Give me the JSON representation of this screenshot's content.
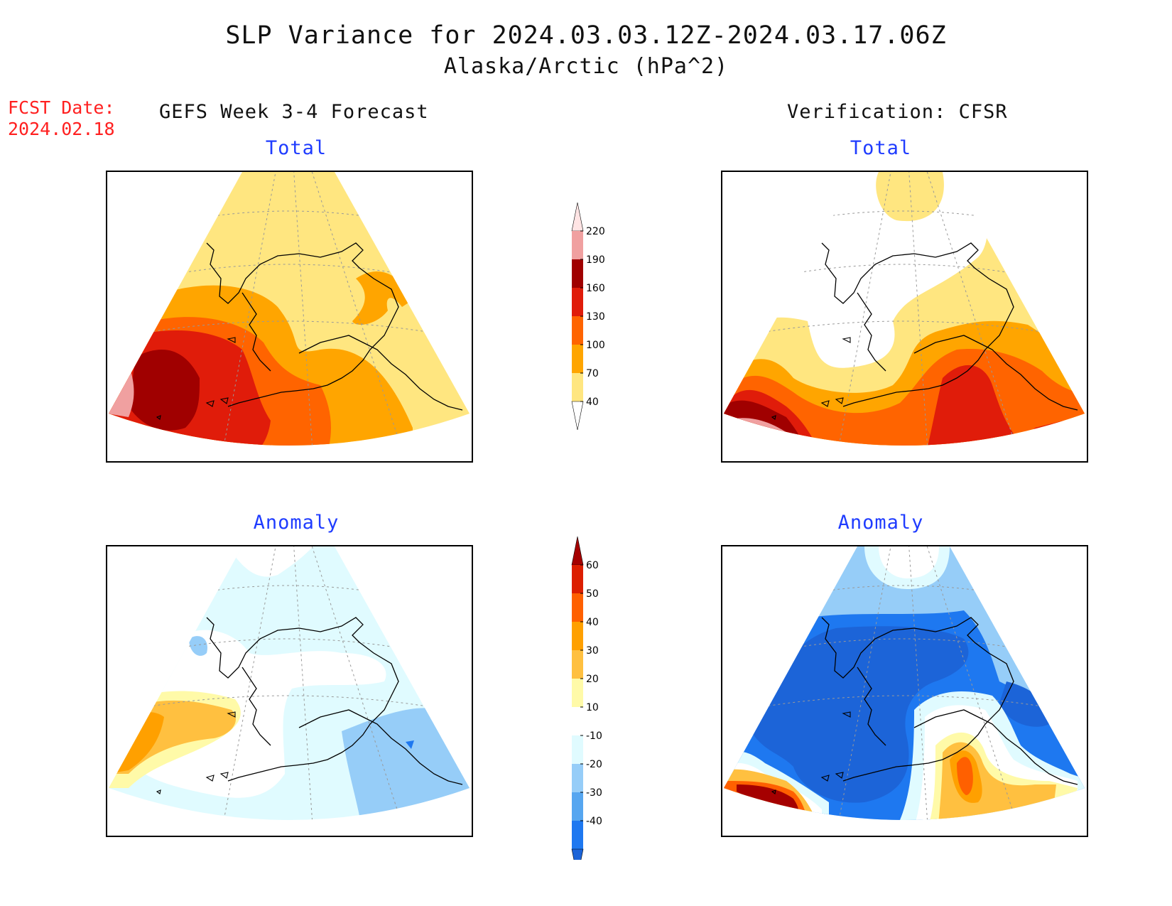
{
  "header": {
    "title": "SLP Variance for 2024.03.03.12Z-2024.03.17.06Z",
    "subtitle": "Alaska/Arctic (hPa^2)",
    "fcst_label": "FCST Date:",
    "fcst_date": "2024.02.18"
  },
  "columns": {
    "left": "GEFS Week 3-4 Forecast",
    "right": "Verification: CFSR"
  },
  "panels": {
    "forecast_total": {
      "title": "Total",
      "region": "Alaska/Arctic"
    },
    "verification_total": {
      "title": "Total",
      "region": "Alaska/Arctic"
    },
    "forecast_anomaly": {
      "title": "Anomaly",
      "region": "Alaska/Arctic"
    },
    "verification_anomaly": {
      "title": "Anomaly",
      "region": "Alaska/Arctic"
    }
  },
  "colorbars": {
    "total": {
      "labels": [
        "40",
        "70",
        "100",
        "130",
        "160",
        "190",
        "220"
      ],
      "colors": [
        "#ffffff",
        "#ffe680",
        "#ffa500",
        "#ff6400",
        "#e01c0a",
        "#a00000",
        "#f0a0a0",
        "#ffe4e4"
      ]
    },
    "anomaly": {
      "labels": [
        "-40",
        "-30",
        "-20",
        "-10",
        "10",
        "20",
        "30",
        "40",
        "50",
        "60"
      ],
      "colors": [
        "#1c64d8",
        "#1e78f0",
        "#56a6f0",
        "#96cdf8",
        "#e0fbff",
        "#ffffff",
        "#fffaa8",
        "#ffc040",
        "#ffa000",
        "#ff6000",
        "#dc1e00",
        "#a50000"
      ]
    }
  },
  "fill_colors": {
    "total": {
      "lt40": "#ffffff",
      "c40": "#ffe680",
      "c70": "#ffa500",
      "c100": "#ff6400",
      "c130": "#e01c0a",
      "c160": "#a00000",
      "c190": "#f0a0a0",
      "c220": "#ffe4e4"
    },
    "anomaly": {
      "n40": "#1c64d8",
      "n30": "#1e78f0",
      "n20": "#96cdf8",
      "n10": "#e0fbff",
      "zero": "#ffffff",
      "p10": "#fffaa8",
      "p20": "#ffc040",
      "p30": "#ffa000",
      "p40": "#ff6000",
      "p50": "#dc1e00",
      "p60": "#a50000"
    }
  }
}
